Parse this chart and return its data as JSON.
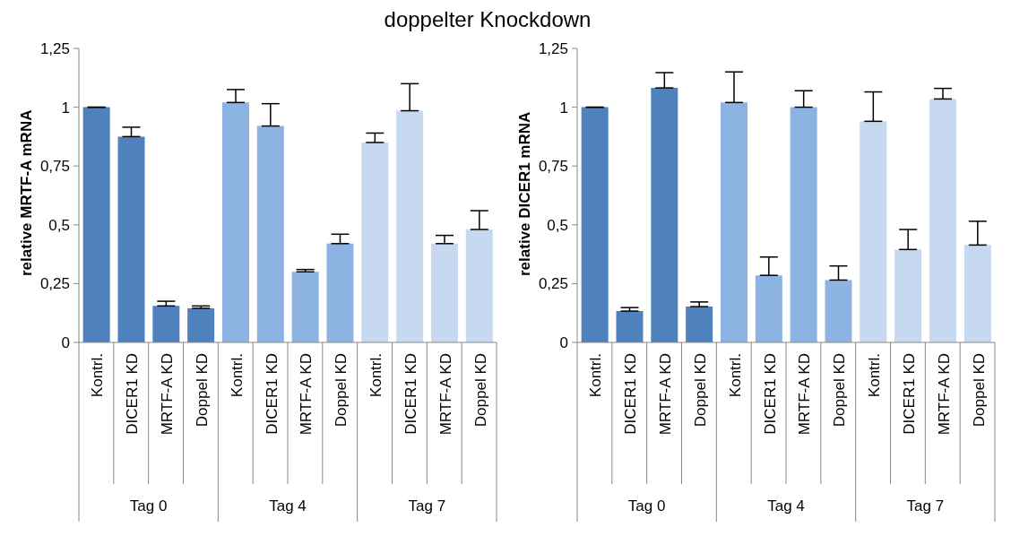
{
  "chart_data": [
    {
      "type": "bar",
      "title": "doppelter Knockdown",
      "ylabel": "relative MRTF-A mRNA",
      "categories": [
        "Kontrl.",
        "DICER1 KD",
        "MRTF-A KD",
        "Doppel KD",
        "Kontrl.",
        "DICER1 KD",
        "MRTF-A KD",
        "Doppel KD",
        "Kontrl.",
        "DICER1 KD",
        "MRTF-A KD",
        "Doppel KD"
      ],
      "values": [
        1.0,
        0.875,
        0.155,
        0.145,
        1.02,
        0.92,
        0.3,
        0.42,
        0.85,
        0.985,
        0.42,
        0.48
      ],
      "errors": [
        [
          1.0,
          1.0
        ],
        [
          0.875,
          0.915
        ],
        [
          0.155,
          0.175
        ],
        [
          0.145,
          0.155
        ],
        [
          1.02,
          1.075
        ],
        [
          0.92,
          1.015
        ],
        [
          0.3,
          0.31
        ],
        [
          0.42,
          0.46
        ],
        [
          0.85,
          0.89
        ],
        [
          0.985,
          1.1
        ],
        [
          0.42,
          0.455
        ],
        [
          0.48,
          0.56
        ]
      ],
      "colors": [
        "#4f81bd",
        "#4f81bd",
        "#4f81bd",
        "#4f81bd",
        "#8db3e2",
        "#8db3e2",
        "#8db3e2",
        "#8db3e2",
        "#c6d9f1",
        "#c6d9f1",
        "#c6d9f1",
        "#c6d9f1"
      ],
      "annotations": [
        "Tag 0",
        "Tag 4",
        "Tag 7"
      ],
      "ylim": [
        0,
        1.25
      ],
      "yticks": [
        {
          "value": 0,
          "label": "0"
        },
        {
          "value": 0.25,
          "label": "0,25"
        },
        {
          "value": 0.5,
          "label": "0,5"
        },
        {
          "value": 0.75,
          "label": "0,75"
        },
        {
          "value": 1,
          "label": "1"
        },
        {
          "value": 1.25,
          "label": "1,25"
        }
      ],
      "grid": false
    },
    {
      "type": "bar",
      "ylabel": "relative DICER1 mRNA",
      "categories": [
        "Kontrl.",
        "DICER1 KD",
        "MRTF-A KD",
        "Doppel KD",
        "Kontrl.",
        "DICER1 KD",
        "MRTF-A KD",
        "Doppel KD",
        "Kontrl.",
        "DICER1 KD",
        "MRTF-A KD",
        "Doppel KD"
      ],
      "values": [
        1.0,
        0.133,
        1.082,
        0.152,
        1.02,
        0.285,
        1.0,
        0.265,
        0.94,
        0.395,
        1.035,
        0.414
      ],
      "errors": [
        [
          1.0,
          1.0
        ],
        [
          0.133,
          0.148
        ],
        [
          1.082,
          1.147
        ],
        [
          0.152,
          0.172
        ],
        [
          1.02,
          1.15
        ],
        [
          0.285,
          0.363
        ],
        [
          1.0,
          1.07
        ],
        [
          0.265,
          0.325
        ],
        [
          0.94,
          1.065
        ],
        [
          0.395,
          0.48
        ],
        [
          1.035,
          1.08
        ],
        [
          0.414,
          0.515
        ]
      ],
      "colors": [
        "#4f81bd",
        "#4f81bd",
        "#4f81bd",
        "#4f81bd",
        "#8db3e2",
        "#8db3e2",
        "#8db3e2",
        "#8db3e2",
        "#c6d9f1",
        "#c6d9f1",
        "#c6d9f1",
        "#c6d9f1"
      ],
      "annotations": [
        "Tag 0",
        "Tag 4",
        "Tag 7"
      ],
      "ylim": [
        0,
        1.25
      ],
      "yticks": [
        {
          "value": 0,
          "label": "0"
        },
        {
          "value": 0.25,
          "label": "0,25"
        },
        {
          "value": 0.5,
          "label": "0,5"
        },
        {
          "value": 0.75,
          "label": "0,75"
        },
        {
          "value": 1,
          "label": "1"
        },
        {
          "value": 1.25,
          "label": "1,25"
        }
      ],
      "grid": false
    }
  ]
}
